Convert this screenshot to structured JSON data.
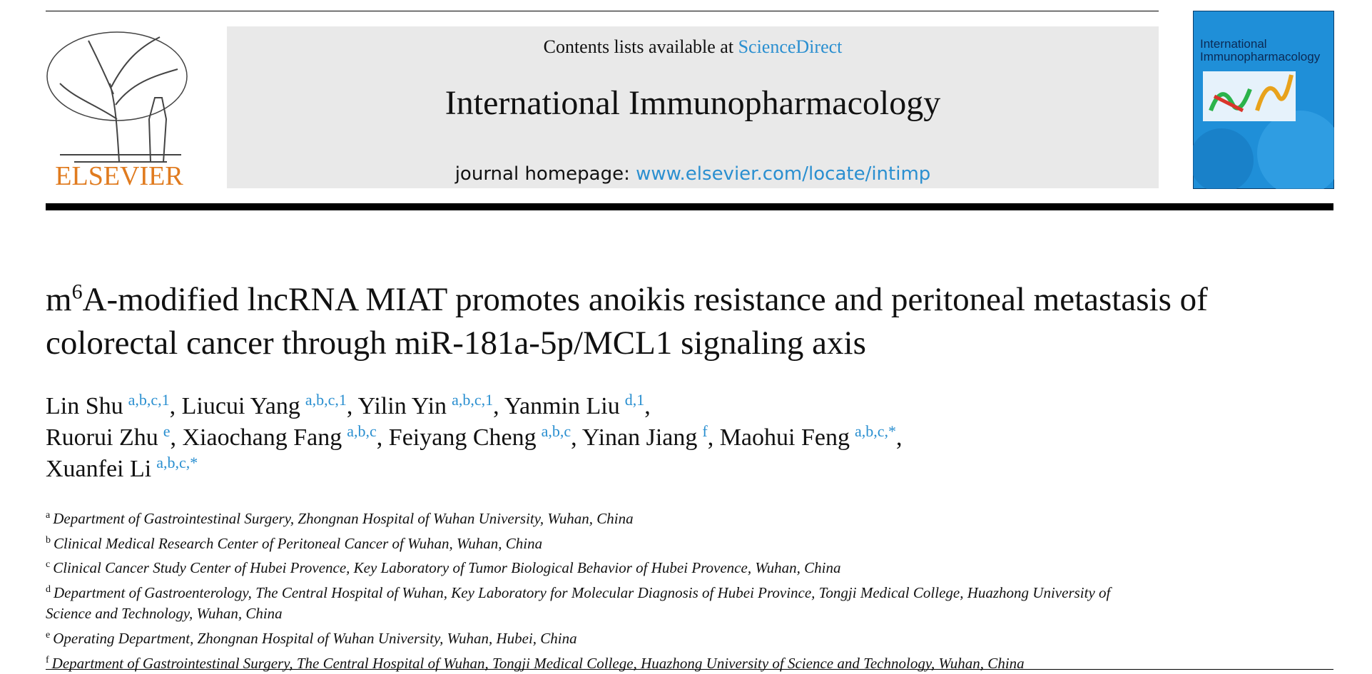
{
  "header": {
    "contents_prefix": "Contents lists available at",
    "sciencedirect": "ScienceDirect",
    "journal": "International Immunopharmacology",
    "homepage_prefix": "journal homepage:",
    "homepage_url": "www.elsevier.com/locate/intimp",
    "publisher": "ELSEVIER",
    "cover_title": "International Immunopharmacology"
  },
  "title": {
    "prefix": "m",
    "superscript": "6",
    "rest": "A-modified lncRNA MIAT promotes anoikis resistance and peritoneal metastasis of colorectal cancer through miR-181a-5p/MCL1 signaling axis"
  },
  "authors": [
    {
      "name": "Lin Shu",
      "sup": "a,b,c,1",
      "trail": ","
    },
    {
      "name": "Liucui Yang",
      "sup": "a,b,c,1",
      "trail": ","
    },
    {
      "name": "Yilin Yin",
      "sup": "a,b,c,1",
      "trail": ","
    },
    {
      "name": "Yanmin Liu",
      "sup": "d,1",
      "trail": ","
    },
    {
      "name": "Ruorui Zhu",
      "sup": "e",
      "trail": ","
    },
    {
      "name": "Xiaochang Fang",
      "sup": "a,b,c",
      "trail": ","
    },
    {
      "name": "Feiyang Cheng",
      "sup": "a,b,c",
      "trail": ","
    },
    {
      "name": "Yinan Jiang",
      "sup": "f",
      "trail": ","
    },
    {
      "name": "Maohui Feng",
      "sup": "a,b,c,*",
      "trail": ","
    },
    {
      "name": "Xuanfei Li",
      "sup": "a,b,c,*"
    }
  ],
  "affiliations": [
    {
      "letter": "a",
      "text": "Department of Gastrointestinal Surgery, Zhongnan Hospital of Wuhan University, Wuhan, China"
    },
    {
      "letter": "b",
      "text": "Clinical Medical Research Center of Peritoneal Cancer of Wuhan, Wuhan, China"
    },
    {
      "letter": "c",
      "text": "Clinical Cancer Study Center of Hubei Provence, Key Laboratory of Tumor Biological Behavior of Hubei Provence, Wuhan, China"
    },
    {
      "letter": "d",
      "text": "Department of Gastroenterology, The Central Hospital of Wuhan, Key Laboratory for Molecular Diagnosis of Hubei Province, Tongji Medical College, Huazhong University of Science and Technology, Wuhan, China"
    },
    {
      "letter": "e",
      "text": "Operating Department, Zhongnan Hospital of Wuhan University, Wuhan, Hubei, China"
    },
    {
      "letter": "f",
      "text": "Department of Gastrointestinal Surgery, The Central Hospital of Wuhan, Tongji Medical College, Huazhong University of Science and Technology, Wuhan, China"
    }
  ]
}
